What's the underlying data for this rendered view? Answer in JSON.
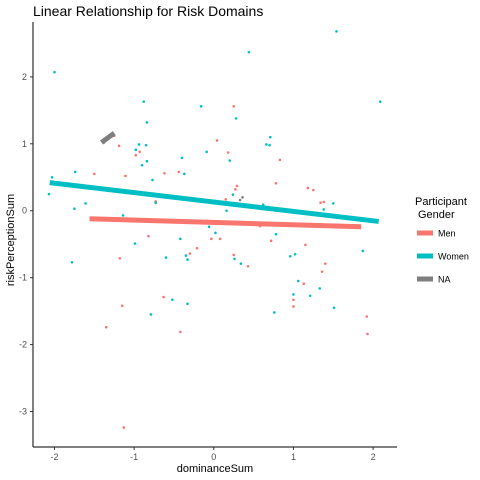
{
  "chart_data": {
    "type": "scatter",
    "title": "Linear Relationship for Risk Domains",
    "xlabel": "dominanceSum",
    "ylabel": "riskPerceptionSum",
    "xlim": [
      -2.27,
      2.3
    ],
    "ylim": [
      -3.53,
      2.82
    ],
    "x_ticks": [
      -2,
      -1,
      0,
      1,
      2
    ],
    "y_ticks": [
      -3,
      -2,
      -1,
      0,
      1,
      2
    ],
    "grid": false,
    "legend": {
      "title_line1": "Participant",
      "title_line2": "Gender",
      "placement": "right"
    },
    "series": [
      {
        "name": "Men",
        "color": "#F8766D",
        "points": [
          [
            -1.25,
            1.12
          ],
          [
            -1.19,
            0.97
          ],
          [
            -1.11,
            0.52
          ],
          [
            -1.5,
            0.55
          ],
          [
            -1.18,
            -0.71
          ],
          [
            -1.15,
            -1.42
          ],
          [
            -1.35,
            -1.74
          ],
          [
            -1.13,
            -3.24
          ],
          [
            -0.98,
            0.83
          ],
          [
            -0.93,
            0.88
          ],
          [
            -0.81,
            0.25
          ],
          [
            -0.73,
            0.14
          ],
          [
            -0.62,
            0.56
          ],
          [
            -0.44,
            0.58
          ],
          [
            -0.63,
            -1.29
          ],
          [
            -0.42,
            -1.81
          ],
          [
            -0.82,
            -0.38
          ],
          [
            -0.3,
            -0.64
          ],
          [
            -0.21,
            -0.56
          ],
          [
            -0.08,
            -0.15
          ],
          [
            -0.03,
            -0.42
          ],
          [
            0.04,
            1.05
          ],
          [
            0.08,
            -0.42
          ],
          [
            0.18,
            0.87
          ],
          [
            0.25,
            1.56
          ],
          [
            0.25,
            -0.66
          ],
          [
            0.29,
            0.37
          ],
          [
            0.43,
            -0.83
          ],
          [
            0.58,
            -0.23
          ],
          [
            0.72,
            -0.45
          ],
          [
            0.78,
            0.41
          ],
          [
            0.83,
            0.76
          ],
          [
            1.0,
            -1.43
          ],
          [
            1.0,
            -1.33
          ],
          [
            1.13,
            -1.09
          ],
          [
            1.15,
            -0.51
          ],
          [
            1.18,
            0.34
          ],
          [
            1.25,
            0.31
          ],
          [
            1.34,
            0.12
          ],
          [
            1.38,
            0.13
          ],
          [
            1.36,
            -0.91
          ],
          [
            1.4,
            -0.79
          ],
          [
            1.92,
            -1.58
          ],
          [
            1.93,
            -1.84
          ],
          [
            0.15,
            0.17
          ],
          [
            0.27,
            0.32
          ]
        ],
        "fit": [
          [
            -1.56,
            -0.12
          ],
          [
            1.85,
            -0.24
          ]
        ]
      },
      {
        "name": "Women",
        "color": "#00BFC4",
        "points": [
          [
            -2.07,
            0.25
          ],
          [
            -2.03,
            0.5
          ],
          [
            -2.0,
            2.07
          ],
          [
            -1.78,
            -0.77
          ],
          [
            -1.74,
            0.58
          ],
          [
            -1.75,
            0.03
          ],
          [
            -1.61,
            0.11
          ],
          [
            -1.14,
            -0.07
          ],
          [
            -1.11,
            0.27
          ],
          [
            -0.99,
            -0.49
          ],
          [
            -0.98,
            0.91
          ],
          [
            -0.94,
            0.99
          ],
          [
            -0.9,
            0.68
          ],
          [
            -0.88,
            1.63
          ],
          [
            -0.85,
            0.98
          ],
          [
            -0.84,
            1.32
          ],
          [
            -0.84,
            0.74
          ],
          [
            -0.79,
            -1.55
          ],
          [
            -0.77,
            0.46
          ],
          [
            -0.73,
            0.12
          ],
          [
            -0.6,
            -0.7
          ],
          [
            -0.52,
            -1.33
          ],
          [
            -0.42,
            -0.42
          ],
          [
            -0.4,
            0.79
          ],
          [
            -0.37,
            0.55
          ],
          [
            -0.35,
            -0.67
          ],
          [
            -0.33,
            -0.73
          ],
          [
            -0.33,
            -1.39
          ],
          [
            -0.16,
            1.56
          ],
          [
            -0.09,
            0.88
          ],
          [
            -0.06,
            -0.24
          ],
          [
            0.02,
            -0.33
          ],
          [
            0.16,
            0.0
          ],
          [
            0.2,
            0.75
          ],
          [
            0.24,
            0.24
          ],
          [
            0.26,
            -0.72
          ],
          [
            0.28,
            1.38
          ],
          [
            0.34,
            -0.79
          ],
          [
            0.44,
            2.37
          ],
          [
            0.62,
            0.09
          ],
          [
            0.66,
            0.99
          ],
          [
            0.71,
            1.1
          ],
          [
            0.7,
            0.98
          ],
          [
            0.76,
            -1.52
          ],
          [
            0.78,
            -0.35
          ],
          [
            0.96,
            -0.68
          ],
          [
            1.0,
            -1.25
          ],
          [
            1.02,
            -0.65
          ],
          [
            1.06,
            -1.05
          ],
          [
            1.21,
            -1.27
          ],
          [
            1.33,
            -1.16
          ],
          [
            1.38,
            0.02
          ],
          [
            1.5,
            0.11
          ],
          [
            1.51,
            -1.45
          ],
          [
            1.54,
            2.68
          ],
          [
            1.87,
            -0.6
          ],
          [
            2.09,
            1.63
          ]
        ],
        "fit": [
          [
            -2.06,
            0.42
          ],
          [
            2.07,
            -0.16
          ]
        ]
      },
      {
        "name": "NA",
        "color": "#7F7F7F",
        "points": [
          [
            -1.38,
            1.02
          ],
          [
            -1.33,
            1.08
          ],
          [
            -1.28,
            1.13
          ],
          [
            0.33,
            0.16
          ],
          [
            0.36,
            0.2
          ]
        ],
        "fit": [
          [
            -1.41,
            1.02
          ],
          [
            -1.25,
            1.16
          ]
        ]
      }
    ]
  }
}
